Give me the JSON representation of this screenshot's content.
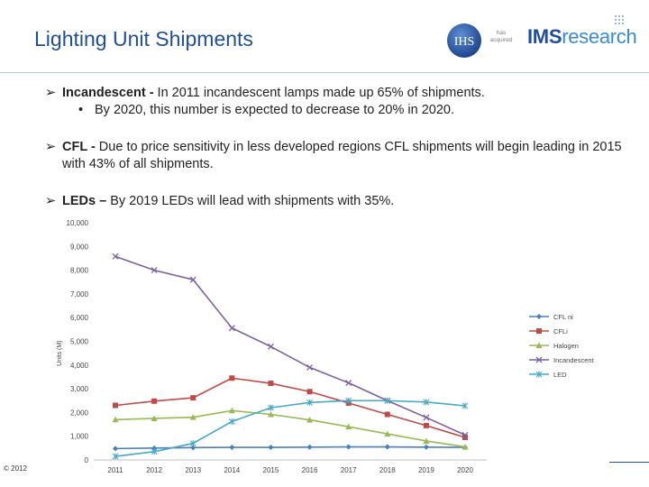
{
  "slide": {
    "title": "Lighting Unit Shipments",
    "copyright": "© 2012",
    "logos": {
      "ihs": "IHS",
      "acquired": "has acquired",
      "ims_bold": "IMS",
      "ims_light": "research"
    }
  },
  "bullets": [
    {
      "lead": "Incandescent -",
      "text": " In 2011 incandescent lamps made up 65% of shipments.",
      "sub": "By 2020, this number is expected to decrease to 20% in 2020."
    },
    {
      "lead": "CFL -",
      "text": " Due to price sensitivity in less developed regions CFL shipments will begin leading in 2015 with 43% of all shipments."
    },
    {
      "lead": "LEDs –",
      "text": " By 2019 LEDs will lead with shipments with 35%."
    }
  ],
  "chart_data": {
    "type": "line",
    "ylabel": "Units (M)",
    "ylim": [
      0,
      10000
    ],
    "yticks": [
      "0",
      "1,000",
      "2,000",
      "3,000",
      "4,000",
      "5,000",
      "6,000",
      "7,000",
      "8,000",
      "9,000",
      "10,000"
    ],
    "x": [
      "2011",
      "2012",
      "2013",
      "2014",
      "2015",
      "2016",
      "2017",
      "2018",
      "2019",
      "2020"
    ],
    "legend_position": "right",
    "series": [
      {
        "name": "CFL ni",
        "color": "#4a7ebb",
        "marker": "diamond",
        "values": [
          480,
          500,
          520,
          530,
          530,
          540,
          550,
          550,
          540,
          530
        ]
      },
      {
        "name": "CFLi",
        "color": "#be4b48",
        "marker": "square",
        "values": [
          2300,
          2480,
          2620,
          3450,
          3230,
          2880,
          2400,
          1920,
          1450,
          950
        ]
      },
      {
        "name": "Halogen",
        "color": "#98b954",
        "marker": "triangle",
        "values": [
          1700,
          1750,
          1800,
          2080,
          1920,
          1690,
          1400,
          1100,
          800,
          550
        ]
      },
      {
        "name": "Incandescent",
        "color": "#7d60a0",
        "marker": "x",
        "values": [
          8580,
          8000,
          7600,
          5560,
          4780,
          3900,
          3250,
          2500,
          1790,
          1050
        ]
      },
      {
        "name": "LED",
        "color": "#46aac5",
        "marker": "star",
        "values": [
          150,
          350,
          700,
          1620,
          2200,
          2420,
          2500,
          2500,
          2440,
          2280
        ]
      }
    ]
  }
}
